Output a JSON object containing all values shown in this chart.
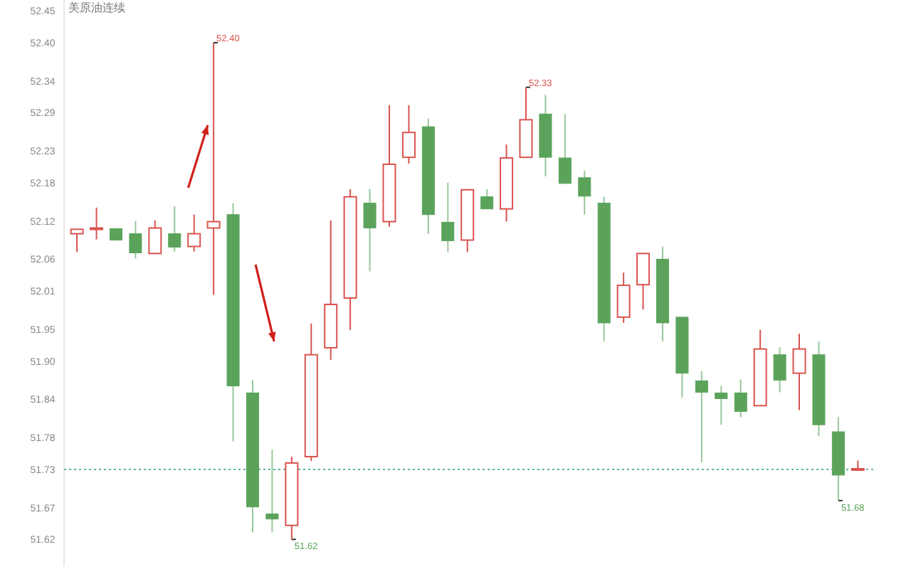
{
  "chart_data": {
    "type": "candlestick",
    "title": "美原油连续",
    "categories": [
      null,
      null,
      null,
      null,
      null,
      null,
      null,
      null,
      null,
      null,
      null,
      null,
      null,
      null,
      null,
      null,
      null,
      null,
      null,
      null,
      null,
      null,
      null,
      null,
      null,
      null,
      null,
      null,
      null,
      null,
      null,
      null,
      null,
      null,
      null,
      null,
      null,
      null,
      null,
      null,
      null
    ],
    "ohlc": [
      [
        52.1,
        52.107,
        52.071,
        52.107
      ],
      [
        52.109,
        52.141,
        52.091,
        52.109
      ],
      [
        52.108,
        52.108,
        52.09,
        52.09
      ],
      [
        52.1,
        52.12,
        52.061,
        52.07
      ],
      [
        52.069,
        52.121,
        52.069,
        52.109
      ],
      [
        52.1,
        52.143,
        52.072,
        52.079
      ],
      [
        52.08,
        52.13,
        52.072,
        52.1
      ],
      [
        52.109,
        52.4,
        52.004,
        52.119
      ],
      [
        52.13,
        52.148,
        51.774,
        51.861
      ],
      [
        51.85,
        51.87,
        51.631,
        51.671
      ],
      [
        51.66,
        51.761,
        51.631,
        51.652
      ],
      [
        51.642,
        51.75,
        51.62,
        51.74
      ],
      [
        51.75,
        51.959,
        51.743,
        51.91
      ],
      [
        51.921,
        52.121,
        51.902,
        51.989
      ],
      [
        51.999,
        52.17,
        51.949,
        52.158
      ],
      [
        52.148,
        52.17,
        52.041,
        52.109
      ],
      [
        52.119,
        52.302,
        52.111,
        52.209
      ],
      [
        52.22,
        52.302,
        52.21,
        52.259
      ],
      [
        52.268,
        52.281,
        52.1,
        52.13
      ],
      [
        52.118,
        52.18,
        52.071,
        52.089
      ],
      [
        52.09,
        52.169,
        52.071,
        52.169
      ],
      [
        52.158,
        52.17,
        52.139,
        52.139
      ],
      [
        52.139,
        52.24,
        52.119,
        52.219
      ],
      [
        52.22,
        52.33,
        52.22,
        52.279
      ],
      [
        52.288,
        52.318,
        52.19,
        52.22
      ],
      [
        52.219,
        52.288,
        52.179,
        52.179
      ],
      [
        52.188,
        52.199,
        52.13,
        52.159
      ],
      [
        52.148,
        52.158,
        51.931,
        51.96
      ],
      [
        51.969,
        52.039,
        51.96,
        52.019
      ],
      [
        52.02,
        52.069,
        51.981,
        52.069
      ],
      [
        52.06,
        52.08,
        51.931,
        51.96
      ],
      [
        51.969,
        51.969,
        51.843,
        51.881
      ],
      [
        51.869,
        51.884,
        51.741,
        51.851
      ],
      [
        51.85,
        51.861,
        51.8,
        51.841
      ],
      [
        51.85,
        51.871,
        51.812,
        51.821
      ],
      [
        51.83,
        51.949,
        51.83,
        51.919
      ],
      [
        51.91,
        51.922,
        51.851,
        51.87
      ],
      [
        51.881,
        51.943,
        51.823,
        51.919
      ],
      [
        51.91,
        51.931,
        51.782,
        51.8
      ],
      [
        51.789,
        51.812,
        51.681,
        51.721
      ],
      [
        51.731,
        51.744,
        51.731,
        51.731
      ]
    ],
    "colors": [
      "#d9534f",
      "#d9534f",
      "#5ba35b",
      "#5ba35b",
      "#d9534f",
      "#5ba35b",
      "#d9534f",
      "#d9534f",
      "#5ba35b",
      "#5ba35b",
      "#5ba35b",
      "#d9534f",
      "#d9534f",
      "#d9534f",
      "#d9534f",
      "#5ba35b",
      "#d9534f",
      "#d9534f",
      "#5ba35b",
      "#5ba35b",
      "#d9534f",
      "#5ba35b",
      "#d9534f",
      "#d9534f",
      "#5ba35b",
      "#5ba35b",
      "#5ba35b",
      "#5ba35b",
      "#d9534f",
      "#d9534f",
      "#5ba35b",
      "#5ba35b",
      "#5ba35b",
      "#5ba35b",
      "#5ba35b",
      "#d9534f",
      "#5ba35b",
      "#d9534f",
      "#5ba35b",
      "#5ba35b",
      "#d9534f"
    ],
    "ylim": [
      51.578,
      52.467
    ],
    "yticks": [
      51.62,
      51.67,
      {
        "value": 51.73,
        "label": "51.73"
      },
      51.78,
      51.84,
      {
        "value": 51.9,
        "label": "51.90"
      },
      51.95,
      52.01,
      52.06,
      52.12,
      52.18,
      52.23,
      52.29,
      52.34,
      {
        "value": 52.4,
        "label": "52.40"
      },
      52.45
    ],
    "ref_lines": [
      {
        "axis": "y",
        "value": 51.73,
        "color": "#5fb3a3",
        "line_style": "dotted"
      }
    ],
    "annotations": [
      "52.40",
      "52.33",
      "51.62",
      "51.68"
    ]
  }
}
